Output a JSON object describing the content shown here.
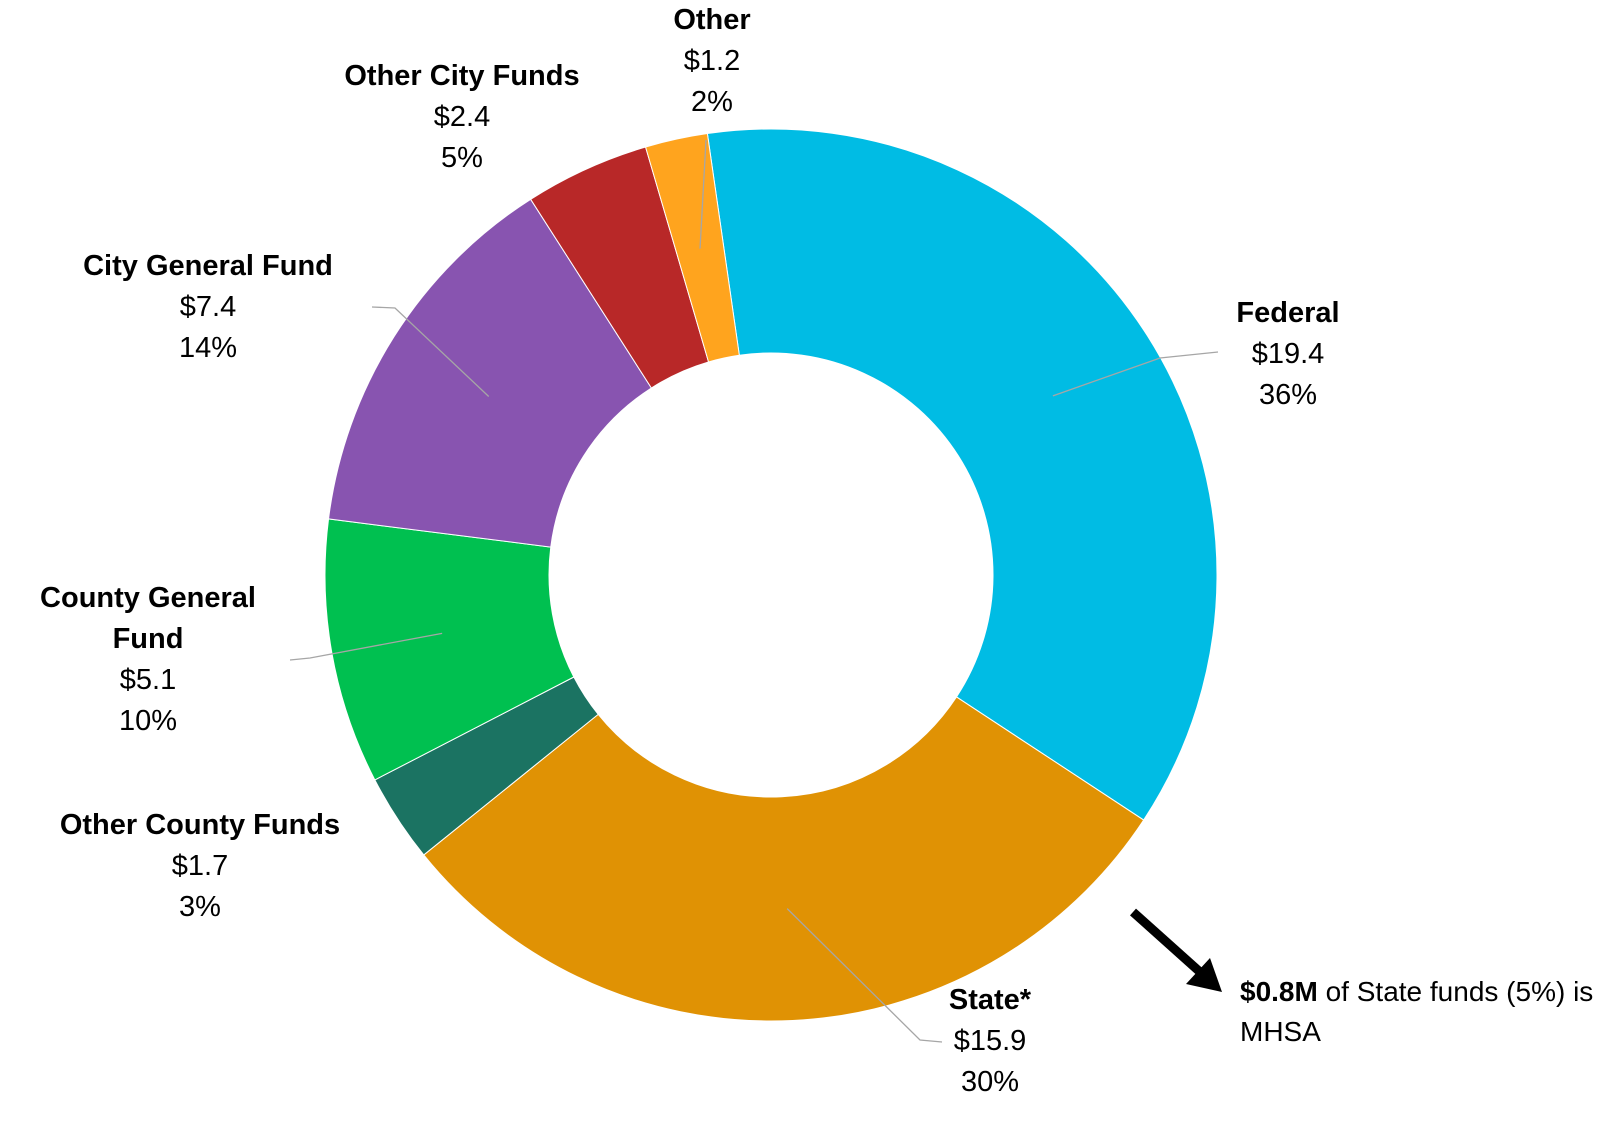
{
  "chart_data": {
    "type": "donut",
    "categories": [
      "Federal",
      "State*",
      "Other County Funds",
      "County General Fund",
      "City General Fund",
      "Other City Funds",
      "Other"
    ],
    "values": [
      19.4,
      15.9,
      1.7,
      5.1,
      7.4,
      2.4,
      1.2
    ],
    "value_labels": [
      "$19.4",
      "$15.9",
      "$1.7",
      "$5.1",
      "$7.4",
      "$2.4",
      "$1.2"
    ],
    "percents": [
      36,
      30,
      3,
      10,
      14,
      5,
      2
    ],
    "percent_labels": [
      "36%",
      "30%",
      "3%",
      "10%",
      "14%",
      "5%",
      "2%"
    ],
    "colors": [
      "#00bce4",
      "#e09204",
      "#1b7362",
      "#00c050",
      "#8854b0",
      "#b82828",
      "#ffa41e"
    ],
    "annotation": {
      "bold": "$0.8M",
      "text": "of State funds (5%) is MHSA"
    }
  }
}
